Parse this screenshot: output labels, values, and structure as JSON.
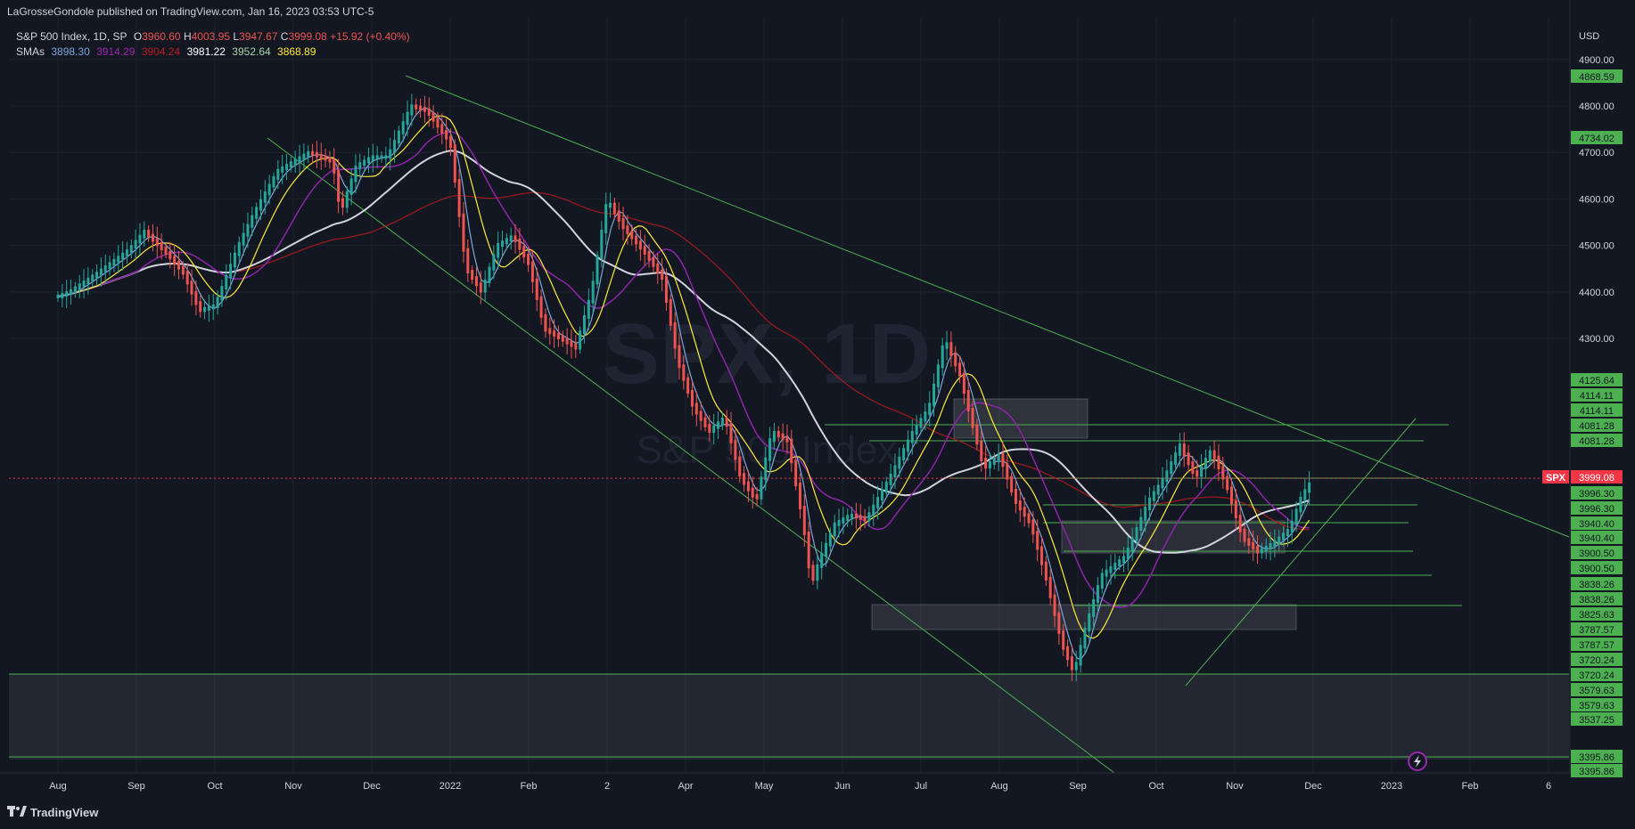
{
  "header": {
    "published": "LaGrosseGondole published on TradingView.com, Jan 16, 2023 03:53 UTC-5"
  },
  "legend": {
    "symbol": "S&P 500 Index, 1D, SP",
    "open_label": "O",
    "open": "3960.60",
    "high_label": "H",
    "high": "4003.95",
    "low_label": "L",
    "low": "3947.67",
    "close_label": "C",
    "close": "3999.08",
    "change": "+15.92 (+0.40%)",
    "sma_label": "SMAs",
    "sma_values": [
      {
        "value": "3898.30",
        "color": "#7ba7d8"
      },
      {
        "value": "3914.29",
        "color": "#9c27b0"
      },
      {
        "value": "3904.24",
        "color": "#b71c1c"
      },
      {
        "value": "3981.22",
        "color": "#ffffff"
      },
      {
        "value": "3952.64",
        "color": "#a5d6a7"
      },
      {
        "value": "3868.89",
        "color": "#ffeb3b"
      }
    ]
  },
  "watermark": {
    "symbol": "SPX, 1D",
    "name": "S&P 500 Index"
  },
  "footer": {
    "brand": "TradingView"
  },
  "chart_data": {
    "type": "candlestick",
    "title": "S&P 500 Index, 1D, SP",
    "currency": "USD",
    "ylim": [
      3340,
      5000
    ],
    "y_ticks": [
      4900,
      4800,
      4700,
      4600,
      4500,
      4400,
      4300
    ],
    "y_tick_labels": [
      "4900.00",
      "4800.00",
      "4700.00",
      "4600.00",
      "4500.00",
      "4400.00",
      "4300.00"
    ],
    "x_tick_labels": [
      "Aug",
      "Sep",
      "Oct",
      "Nov",
      "Dec",
      "2022",
      "Feb",
      "2",
      "Apr",
      "May",
      "Jun",
      "Jul",
      "Aug",
      "Sep",
      "Oct",
      "Nov",
      "Dec",
      "2023",
      "Feb",
      "6"
    ],
    "x_tick_months": [
      0,
      1,
      2,
      3,
      4,
      5,
      6,
      7,
      8,
      9,
      10,
      11,
      12,
      13,
      14,
      15,
      16,
      17,
      18,
      19
    ],
    "price_points": [
      [
        0.0,
        4390
      ],
      [
        0.15,
        4400
      ],
      [
        0.5,
        4440
      ],
      [
        0.9,
        4490
      ],
      [
        1.1,
        4530
      ],
      [
        1.4,
        4480
      ],
      [
        1.6,
        4440
      ],
      [
        1.8,
        4360
      ],
      [
        2.0,
        4370
      ],
      [
        2.3,
        4500
      ],
      [
        2.5,
        4570
      ],
      [
        2.8,
        4660
      ],
      [
        3.2,
        4700
      ],
      [
        3.5,
        4680
      ],
      [
        3.6,
        4570
      ],
      [
        3.8,
        4670
      ],
      [
        4.0,
        4690
      ],
      [
        4.2,
        4690
      ],
      [
        4.5,
        4800
      ],
      [
        4.7,
        4790
      ],
      [
        5.0,
        4720
      ],
      [
        5.2,
        4450
      ],
      [
        5.4,
        4400
      ],
      [
        5.6,
        4500
      ],
      [
        5.8,
        4520
      ],
      [
        6.0,
        4460
      ],
      [
        6.2,
        4320
      ],
      [
        6.4,
        4300
      ],
      [
        6.6,
        4280
      ],
      [
        6.8,
        4400
      ],
      [
        7.0,
        4600
      ],
      [
        7.2,
        4540
      ],
      [
        7.5,
        4480
      ],
      [
        7.7,
        4430
      ],
      [
        7.9,
        4250
      ],
      [
        8.1,
        4150
      ],
      [
        8.3,
        4100
      ],
      [
        8.5,
        4130
      ],
      [
        8.7,
        4000
      ],
      [
        8.9,
        3950
      ],
      [
        9.1,
        4100
      ],
      [
        9.3,
        4080
      ],
      [
        9.5,
        3900
      ],
      [
        9.6,
        3770
      ],
      [
        9.7,
        3820
      ],
      [
        9.9,
        3900
      ],
      [
        10.1,
        3920
      ],
      [
        10.3,
        3910
      ],
      [
        10.6,
        4000
      ],
      [
        10.9,
        4100
      ],
      [
        11.1,
        4150
      ],
      [
        11.3,
        4300
      ],
      [
        11.5,
        4220
      ],
      [
        11.6,
        4150
      ],
      [
        11.8,
        4020
      ],
      [
        12.0,
        4050
      ],
      [
        12.2,
        3950
      ],
      [
        12.4,
        3900
      ],
      [
        12.6,
        3780
      ],
      [
        12.8,
        3640
      ],
      [
        12.95,
        3580
      ],
      [
        13.1,
        3680
      ],
      [
        13.3,
        3790
      ],
      [
        13.6,
        3830
      ],
      [
        13.9,
        3950
      ],
      [
        14.1,
        4000
      ],
      [
        14.3,
        4070
      ],
      [
        14.5,
        4000
      ],
      [
        14.7,
        4060
      ],
      [
        14.9,
        3980
      ],
      [
        15.1,
        3870
      ],
      [
        15.3,
        3840
      ],
      [
        15.5,
        3860
      ],
      [
        15.7,
        3890
      ],
      [
        15.85,
        3960
      ],
      [
        16.0,
        3999
      ]
    ],
    "series": [
      {
        "name": "SMAs",
        "color": "#d1d4dc"
      }
    ],
    "horizontal_levels": [
      4081.28,
      4081.28,
      3996.3,
      3940.4,
      3900.5,
      3838.26,
      3825.63,
      3787.57,
      3720.24,
      3579.63,
      3537.25,
      3395.86
    ],
    "right_axis_tags": [
      {
        "value": "4868.59",
        "color": "#4caf50"
      },
      {
        "value": "4734.02",
        "color": "#4caf50"
      },
      {
        "value": "4125.64",
        "color": "#4caf50"
      },
      {
        "value": "4114.11",
        "color": "#4caf50"
      },
      {
        "value": "4114.11",
        "color": "#4caf50"
      },
      {
        "value": "4081.28",
        "color": "#4caf50"
      },
      {
        "value": "4081.28",
        "color": "#4caf50"
      },
      {
        "value": "3999.08",
        "color": "#f23645"
      },
      {
        "value": "3996.30",
        "color": "#4caf50"
      },
      {
        "value": "3996.30",
        "color": "#4caf50"
      },
      {
        "value": "3940.40",
        "color": "#4caf50"
      },
      {
        "value": "3940.40",
        "color": "#4caf50"
      },
      {
        "value": "3900.50",
        "color": "#4caf50"
      },
      {
        "value": "3900.50",
        "color": "#4caf50"
      },
      {
        "value": "3838.26",
        "color": "#4caf50"
      },
      {
        "value": "3838.26",
        "color": "#4caf50"
      },
      {
        "value": "3825.63",
        "color": "#4caf50"
      },
      {
        "value": "3787.57",
        "color": "#4caf50"
      },
      {
        "value": "3787.57",
        "color": "#4caf50"
      },
      {
        "value": "3720.24",
        "color": "#4caf50"
      },
      {
        "value": "3720.24",
        "color": "#4caf50"
      },
      {
        "value": "3579.63",
        "color": "#4caf50"
      },
      {
        "value": "3579.63",
        "color": "#4caf50"
      },
      {
        "value": "3537.25",
        "color": "#4caf50"
      },
      {
        "value": "3395.86",
        "color": "#4caf50"
      },
      {
        "value": "3395.86",
        "color": "#4caf50"
      }
    ],
    "symbol_tag": "SPX",
    "last_price": 3999.08,
    "colors": {
      "up": "#26a69a",
      "down": "#ef5350",
      "trend": "#4caf50",
      "background": "#131722"
    }
  }
}
